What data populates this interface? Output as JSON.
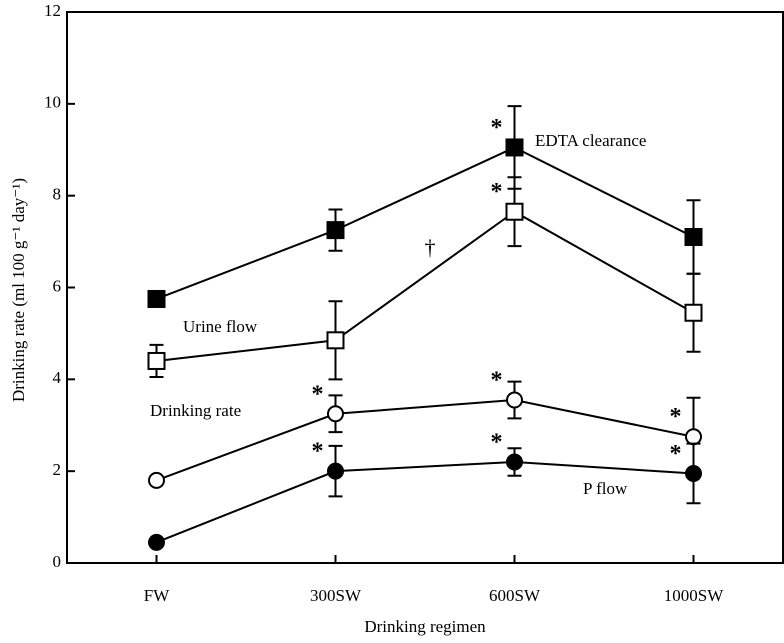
{
  "chart_data": {
    "type": "line",
    "x_label": "Drinking regimen",
    "y_label": "Drinking rate (ml 100 g⁻¹ day⁻¹)",
    "categories": [
      "FW",
      "300SW",
      "600SW",
      "1000SW"
    ],
    "ylim": [
      0,
      12
    ],
    "yticks": [
      0,
      2,
      4,
      6,
      8,
      10,
      12
    ],
    "color": "#000000",
    "series": [
      {
        "name": "EDTA clearance",
        "marker": "square",
        "filled": true,
        "values": [
          5.75,
          7.25,
          9.05,
          7.1
        ],
        "errors": [
          null,
          0.45,
          0.9,
          0.8
        ],
        "significance": [
          null,
          null,
          "*",
          null
        ]
      },
      {
        "name": "Urine flow",
        "marker": "square",
        "filled": false,
        "values": [
          4.4,
          4.85,
          7.65,
          5.45
        ],
        "errors": [
          0.35,
          0.85,
          0.75,
          0.85
        ],
        "significance": [
          null,
          null,
          "*",
          null
        ]
      },
      {
        "name": "Drinking rate",
        "marker": "circle",
        "filled": false,
        "values": [
          1.8,
          3.25,
          3.55,
          2.75
        ],
        "errors": [
          null,
          0.4,
          0.4,
          0.85
        ],
        "significance": [
          null,
          "*",
          "*",
          "*"
        ]
      },
      {
        "name": "P flow",
        "marker": "circle",
        "filled": true,
        "values": [
          0.45,
          2.0,
          2.2,
          1.95
        ],
        "errors": [
          null,
          0.55,
          0.3,
          0.65
        ],
        "significance": [
          null,
          "*",
          "*",
          "*"
        ]
      }
    ],
    "annotations": [
      {
        "text": "†"
      }
    ]
  }
}
